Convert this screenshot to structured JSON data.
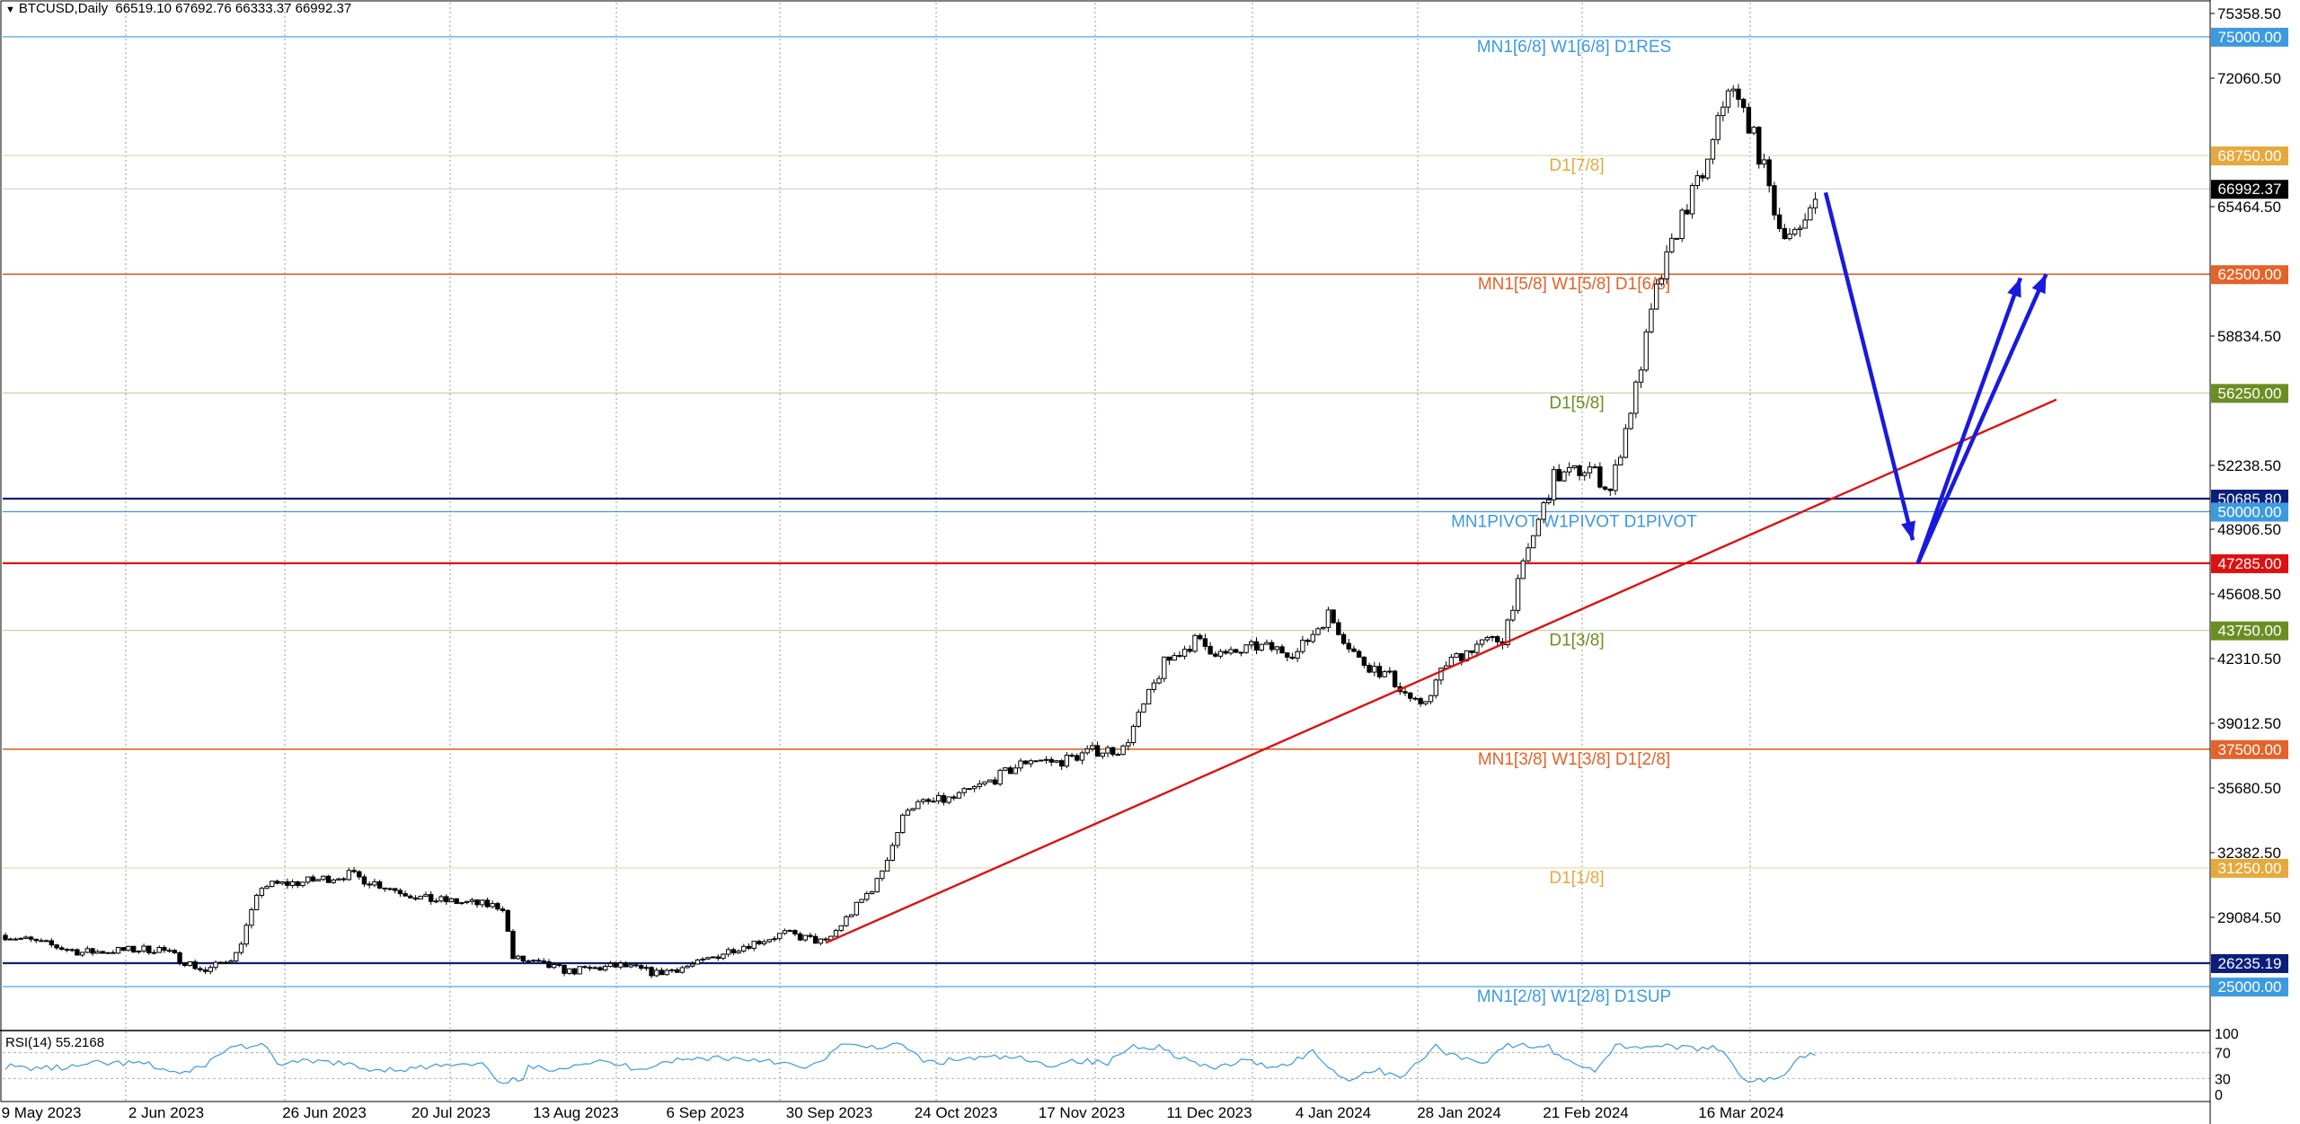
{
  "header": {
    "symbol": "BTCUSD,Daily",
    "ohlc": "66519.10 67692.76 66333.37 66992.37"
  },
  "rsi": {
    "label": "RSI(14) 55.2168",
    "scale": [
      "100",
      "70",
      "30",
      "0"
    ],
    "levels": [
      70,
      30
    ]
  },
  "colors": {
    "background": "#ffffff",
    "candle": "#000000",
    "trendline": "#dd1111",
    "projection": "#1a1adc",
    "grid": "#808080"
  },
  "chart_data": {
    "type": "candlestick",
    "symbol": "BTCUSD",
    "timeframe": "Daily",
    "last_price": 66992.37,
    "y_range": [
      24200,
      75800
    ],
    "y_ticks": [
      "75358.50",
      "72060.50",
      "65464.50",
      "58834.50",
      "52238.50",
      "48906.50",
      "45608.50",
      "42310.50",
      "39012.50",
      "35680.50",
      "32382.50",
      "29084.50"
    ],
    "x_labels": [
      "9 May 2023",
      "2 Jun 2023",
      "26 Jun 2023",
      "20 Jul 2023",
      "13 Aug 2023",
      "6 Sep 2023",
      "30 Sep 2023",
      "24 Oct 2023",
      "17 Nov 2023",
      "11 Dec 2023",
      "4 Jan 2024",
      "28 Jan 2024",
      "21 Feb 2024",
      "16 Mar 2024"
    ],
    "price_path": [
      [
        0,
        27700
      ],
      [
        15,
        26800
      ],
      [
        30,
        27000
      ],
      [
        39,
        25800
      ],
      [
        45,
        26700
      ],
      [
        50,
        30300
      ],
      [
        58,
        30500
      ],
      [
        67,
        30900
      ],
      [
        75,
        30200
      ],
      [
        82,
        29600
      ],
      [
        90,
        29400
      ],
      [
        97,
        29200
      ],
      [
        99,
        26500
      ],
      [
        110,
        25800
      ],
      [
        120,
        26100
      ],
      [
        127,
        25700
      ],
      [
        135,
        26200
      ],
      [
        142,
        27000
      ],
      [
        152,
        27800
      ],
      [
        160,
        27300
      ],
      [
        170,
        30500
      ],
      [
        176,
        34500
      ],
      [
        185,
        34900
      ],
      [
        192,
        35800
      ],
      [
        200,
        37000
      ],
      [
        205,
        36800
      ],
      [
        212,
        37400
      ],
      [
        218,
        37500
      ],
      [
        226,
        42000
      ],
      [
        232,
        43200
      ],
      [
        238,
        42400
      ],
      [
        244,
        42900
      ],
      [
        252,
        42600
      ],
      [
        258,
        44600
      ],
      [
        264,
        42200
      ],
      [
        270,
        41300
      ],
      [
        276,
        39600
      ],
      [
        281,
        42000
      ],
      [
        287,
        43000
      ],
      [
        292,
        43300
      ],
      [
        297,
        48000
      ],
      [
        302,
        51800
      ],
      [
        309,
        52300
      ],
      [
        313,
        51100
      ],
      [
        318,
        56500
      ],
      [
        322,
        61600
      ],
      [
        327,
        65600
      ],
      [
        332,
        68300
      ],
      [
        336,
        72500
      ],
      [
        340,
        70500
      ],
      [
        343,
        68000
      ],
      [
        346,
        65000
      ],
      [
        350,
        64500
      ],
      [
        353,
        66992.37
      ]
    ],
    "levels": [
      {
        "price": 75000.0,
        "value": "75000.00",
        "label": "MN1[6/8] W1[6/8] D1RES",
        "color": "#3c9ae0"
      },
      {
        "price": 68750.0,
        "value": "68750.00",
        "label": "D1[7/8]",
        "color": "#e6a93d"
      },
      {
        "price": 62500.0,
        "value": "62500.00",
        "label": "MN1[5/8] W1[5/8] D1[6/8]",
        "color": "#e3632a"
      },
      {
        "price": 56250.0,
        "value": "56250.00",
        "label": "D1[5/8]",
        "color": "#6b8e23"
      },
      {
        "price": 50685.8,
        "value": "50685.80",
        "label": "",
        "color": "#0b1f7a"
      },
      {
        "price": 50000.0,
        "value": "50000.00",
        "label": "MN1PIVOT W1PIVOT D1PIVOT",
        "color": "#3c9ae0"
      },
      {
        "price": 47285.0,
        "value": "47285.00",
        "label": "",
        "color": "#dd1111"
      },
      {
        "price": 43750.0,
        "value": "43750.00",
        "label": "D1[3/8]",
        "color": "#6b8e23"
      },
      {
        "price": 37500.0,
        "value": "37500.00",
        "label": "MN1[3/8] W1[3/8] D1[2/8]",
        "color": "#e3632a"
      },
      {
        "price": 31250.0,
        "value": "31250.00",
        "label": "D1[1/8]",
        "color": "#e6a93d"
      },
      {
        "price": 26235.19,
        "value": "26235.19",
        "label": "",
        "color": "#0b1f7a"
      },
      {
        "price": 25000.0,
        "value": "25000.00",
        "label": "MN1[2/8] W1[2/8] D1SUP",
        "color": "#3c9ae0"
      }
    ],
    "trendline": {
      "from": [
        160,
        27300
      ],
      "to": [
        400,
        55900
      ]
    },
    "projection_arrows": [
      {
        "from": [
          355,
          66800
        ],
        "to": [
          372,
          48500
        ]
      },
      {
        "from": [
          373,
          47285
        ],
        "to": [
          393,
          62300
        ]
      },
      {
        "from": [
          373,
          47285
        ],
        "to": [
          398,
          62500
        ]
      }
    ],
    "grid": true
  }
}
